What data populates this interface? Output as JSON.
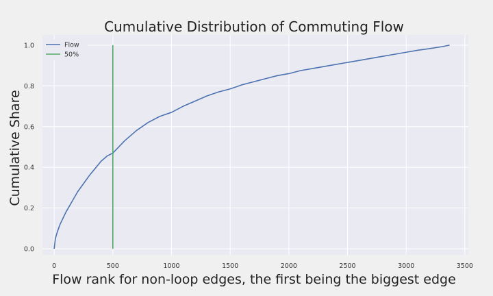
{
  "chart_data": {
    "type": "line",
    "title": "Cumulative Distribution of Commuting Flow",
    "xlabel": "Flow rank for non-loop edges, the first being the biggest edge",
    "ylabel": "Cumulative Share",
    "xlim": [
      -100,
      3530
    ],
    "ylim": [
      -0.03,
      1.05
    ],
    "xticks": [
      0,
      500,
      1000,
      1500,
      2000,
      2500,
      3000,
      3500
    ],
    "xtick_labels": [
      "0",
      "500",
      "1000",
      "1500",
      "2000",
      "2500",
      "3000",
      "3500"
    ],
    "yticks": [
      0.0,
      0.2,
      0.4,
      0.6,
      0.8,
      1.0
    ],
    "ytick_labels": [
      "0.0",
      "0.2",
      "0.4",
      "0.6",
      "0.8",
      "1.0"
    ],
    "grid": true,
    "legend_position": "top-left",
    "series": [
      {
        "name": "Flow",
        "color": "#4c72b0",
        "x": [
          0,
          10,
          25,
          50,
          75,
          100,
          150,
          200,
          250,
          300,
          350,
          400,
          450,
          500,
          600,
          700,
          800,
          900,
          1000,
          1100,
          1200,
          1300,
          1400,
          1500,
          1600,
          1700,
          1800,
          1900,
          2000,
          2100,
          2200,
          2300,
          2400,
          2500,
          2600,
          2700,
          2800,
          2900,
          3000,
          3100,
          3200,
          3300,
          3370
        ],
        "y": [
          0.0,
          0.05,
          0.08,
          0.12,
          0.15,
          0.18,
          0.23,
          0.28,
          0.32,
          0.36,
          0.395,
          0.43,
          0.455,
          0.47,
          0.53,
          0.58,
          0.62,
          0.65,
          0.67,
          0.7,
          0.725,
          0.75,
          0.77,
          0.785,
          0.805,
          0.82,
          0.835,
          0.85,
          0.86,
          0.875,
          0.885,
          0.895,
          0.905,
          0.915,
          0.925,
          0.935,
          0.945,
          0.955,
          0.965,
          0.975,
          0.983,
          0.992,
          1.0
        ]
      },
      {
        "name": "50%",
        "color": "#55a868",
        "x": [
          500,
          500
        ],
        "y": [
          0.0,
          1.0
        ]
      }
    ]
  }
}
